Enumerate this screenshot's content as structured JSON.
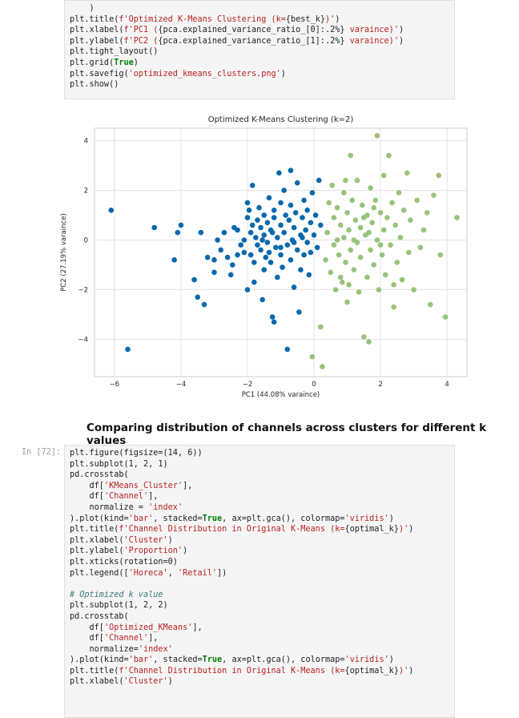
{
  "cell_top": {
    "lines": [
      [
        {
          "t": "    )",
          "c": ""
        }
      ],
      [
        {
          "t": "plt.title(",
          "c": ""
        },
        {
          "t": "f'Optimized K-Means Clustering (k=",
          "c": "str"
        },
        {
          "t": "{best_k}",
          "c": "fexpr"
        },
        {
          "t": ")'",
          "c": "str"
        },
        {
          "t": ")",
          "c": ""
        }
      ],
      [
        {
          "t": "plt.xlabel(",
          "c": ""
        },
        {
          "t": "f'PC1 (",
          "c": "str"
        },
        {
          "t": "{pca.explained_variance_ratio_[0]:.2%}",
          "c": "fexpr"
        },
        {
          "t": " varaince)'",
          "c": "str"
        },
        {
          "t": ")",
          "c": ""
        }
      ],
      [
        {
          "t": "plt.ylabel(",
          "c": ""
        },
        {
          "t": "f'PC2 (",
          "c": "str"
        },
        {
          "t": "{pca.explained_variance_ratio_[1]:.2%}",
          "c": "fexpr"
        },
        {
          "t": " varaince)'",
          "c": "str"
        },
        {
          "t": ")",
          "c": ""
        }
      ],
      [
        {
          "t": "plt.tight_layout()",
          "c": ""
        }
      ],
      [
        {
          "t": "plt.grid(",
          "c": ""
        },
        {
          "t": "True",
          "c": "kw"
        },
        {
          "t": ")",
          "c": ""
        }
      ],
      [
        {
          "t": "plt.savefig(",
          "c": ""
        },
        {
          "t": "'optimized_kmeans_clusters.png'",
          "c": "str"
        },
        {
          "t": ")",
          "c": ""
        }
      ],
      [
        {
          "t": "plt.show()",
          "c": ""
        }
      ]
    ]
  },
  "heading": "Comparing distribution of channels across clusters for different k values",
  "cell_bottom": {
    "prompt": "In [72]:",
    "lines": [
      [
        {
          "t": "plt.figure(figsize=(14, 6))",
          "c": ""
        }
      ],
      [
        {
          "t": "plt.subplot(1, 2, 1)",
          "c": ""
        }
      ],
      [
        {
          "t": "pd.crosstab(",
          "c": ""
        }
      ],
      [
        {
          "t": "    df[",
          "c": ""
        },
        {
          "t": "'KMeans_Cluster'",
          "c": "str"
        },
        {
          "t": "],",
          "c": ""
        }
      ],
      [
        {
          "t": "    df[",
          "c": ""
        },
        {
          "t": "'Channel'",
          "c": "str"
        },
        {
          "t": "],",
          "c": ""
        }
      ],
      [
        {
          "t": "    normalize = ",
          "c": ""
        },
        {
          "t": "'index'",
          "c": "str"
        }
      ],
      [
        {
          "t": ").plot(kind=",
          "c": ""
        },
        {
          "t": "'bar'",
          "c": "str"
        },
        {
          "t": ", stacked=",
          "c": ""
        },
        {
          "t": "True",
          "c": "kw"
        },
        {
          "t": ", ax=plt.gca(), colormap=",
          "c": ""
        },
        {
          "t": "'viridis'",
          "c": "str"
        },
        {
          "t": ")",
          "c": ""
        }
      ],
      [
        {
          "t": "plt.title(",
          "c": ""
        },
        {
          "t": "f'Channel Distribution in Original K-Means (k=",
          "c": "str"
        },
        {
          "t": "{optimal_k}",
          "c": "fexpr"
        },
        {
          "t": ")'",
          "c": "str"
        },
        {
          "t": ")",
          "c": ""
        }
      ],
      [
        {
          "t": "plt.xlabel(",
          "c": ""
        },
        {
          "t": "'Cluster'",
          "c": "str"
        },
        {
          "t": ")",
          "c": ""
        }
      ],
      [
        {
          "t": "plt.ylabel(",
          "c": ""
        },
        {
          "t": "'Proportion'",
          "c": "str"
        },
        {
          "t": ")",
          "c": ""
        }
      ],
      [
        {
          "t": "plt.xticks(rotation=0)",
          "c": ""
        }
      ],
      [
        {
          "t": "plt.legend([",
          "c": ""
        },
        {
          "t": "'Horeca'",
          "c": "str"
        },
        {
          "t": ", ",
          "c": ""
        },
        {
          "t": "'Retail'",
          "c": "str"
        },
        {
          "t": "])",
          "c": ""
        }
      ],
      [
        {
          "t": "",
          "c": ""
        }
      ],
      [
        {
          "t": "# Optimized k value",
          "c": "cm"
        }
      ],
      [
        {
          "t": "plt.subplot(1, 2, 2)",
          "c": ""
        }
      ],
      [
        {
          "t": "pd.crosstab(",
          "c": ""
        }
      ],
      [
        {
          "t": "    df[",
          "c": ""
        },
        {
          "t": "'Optimized_KMeans'",
          "c": "str"
        },
        {
          "t": "],",
          "c": ""
        }
      ],
      [
        {
          "t": "    df[",
          "c": ""
        },
        {
          "t": "'Channel'",
          "c": "str"
        },
        {
          "t": "],",
          "c": ""
        }
      ],
      [
        {
          "t": "    normalize=",
          "c": ""
        },
        {
          "t": "'index'",
          "c": "str"
        }
      ],
      [
        {
          "t": ").plot(kind=",
          "c": ""
        },
        {
          "t": "'bar'",
          "c": "str"
        },
        {
          "t": ", stacked=",
          "c": ""
        },
        {
          "t": "True",
          "c": "kw"
        },
        {
          "t": ", ax=plt.gca(), colormap=",
          "c": ""
        },
        {
          "t": "'viridis'",
          "c": "str"
        },
        {
          "t": ")",
          "c": ""
        }
      ],
      [
        {
          "t": "plt.title(",
          "c": ""
        },
        {
          "t": "f'Channel Distribution in Original K-Means (k=",
          "c": "str"
        },
        {
          "t": "{optimal_k}",
          "c": "fexpr"
        },
        {
          "t": ")'",
          "c": "str"
        },
        {
          "t": ")",
          "c": ""
        }
      ],
      [
        {
          "t": "plt.xlabel(",
          "c": ""
        },
        {
          "t": "'Cluster'",
          "c": "str"
        },
        {
          "t": ")",
          "c": ""
        }
      ]
    ]
  },
  "chart_data": {
    "type": "scatter",
    "title": "Optimized K-Means Clustering (k=2)",
    "xlabel": "PC1 (44.08% varaince)",
    "ylabel": "PC2 (27.19% varaince)",
    "xlim": [
      -6.6,
      4.6
    ],
    "ylim": [
      -5.5,
      4.5
    ],
    "xticks": [
      -6,
      -4,
      -2,
      0,
      2,
      4
    ],
    "yticks": [
      -4,
      -2,
      0,
      2,
      4
    ],
    "grid": true,
    "series": [
      {
        "color": "#0868ac",
        "points": [
          [
            -6.1,
            1.2
          ],
          [
            -5.6,
            -4.4
          ],
          [
            -4.8,
            0.5
          ],
          [
            -4.2,
            -0.8
          ],
          [
            -4.1,
            0.3
          ],
          [
            -4.0,
            0.6
          ],
          [
            -3.6,
            -1.6
          ],
          [
            -3.5,
            -2.3
          ],
          [
            -3.3,
            -2.6
          ],
          [
            -3.4,
            0.3
          ],
          [
            -3.2,
            -0.7
          ],
          [
            -3.0,
            -0.8
          ],
          [
            -3.0,
            -1.3
          ],
          [
            -2.9,
            0.0
          ],
          [
            -2.8,
            -0.4
          ],
          [
            -2.7,
            0.3
          ],
          [
            -2.6,
            -0.7
          ],
          [
            -2.5,
            -1.4
          ],
          [
            -2.4,
            0.5
          ],
          [
            -2.3,
            -0.6
          ],
          [
            -2.3,
            0.4
          ],
          [
            -2.2,
            -0.2
          ],
          [
            -2.1,
            -0.5
          ],
          [
            -2.1,
            0.0
          ],
          [
            -2.0,
            0.9
          ],
          [
            -2.0,
            -2.0
          ],
          [
            -2.0,
            1.5
          ],
          [
            -1.95,
            1.2
          ],
          [
            -1.9,
            0.3
          ],
          [
            -1.9,
            -0.6
          ],
          [
            -1.85,
            0.6
          ],
          [
            -1.8,
            -0.9
          ],
          [
            -1.8,
            -1.7
          ],
          [
            -1.75,
            0.1
          ],
          [
            -1.7,
            -0.2
          ],
          [
            -1.7,
            0.8
          ],
          [
            -1.65,
            1.3
          ],
          [
            -1.6,
            0.5
          ],
          [
            -1.6,
            -0.4
          ],
          [
            -1.55,
            -2.4
          ],
          [
            -1.5,
            1.0
          ],
          [
            -1.5,
            0.2
          ],
          [
            -1.5,
            -1.2
          ],
          [
            -1.45,
            -0.7
          ],
          [
            -1.4,
            0.7
          ],
          [
            -1.4,
            -0.1
          ],
          [
            -1.35,
            1.7
          ],
          [
            -1.3,
            -0.9
          ],
          [
            -1.3,
            0.4
          ],
          [
            -1.25,
            -3.1
          ],
          [
            -1.2,
            -3.3
          ],
          [
            -1.2,
            0.9
          ],
          [
            -1.2,
            1.2
          ],
          [
            -1.15,
            -0.3
          ],
          [
            -1.1,
            0.1
          ],
          [
            -1.1,
            -1.5
          ],
          [
            -1.05,
            2.7
          ],
          [
            -1.0,
            0.6
          ],
          [
            -1.0,
            1.5
          ],
          [
            -1.0,
            -0.6
          ],
          [
            -0.95,
            -1.1
          ],
          [
            -0.9,
            0.3
          ],
          [
            -0.9,
            2.0
          ],
          [
            -0.85,
            1.0
          ],
          [
            -0.8,
            -0.2
          ],
          [
            -0.8,
            -4.4
          ],
          [
            -0.75,
            0.8
          ],
          [
            -0.7,
            -0.8
          ],
          [
            -0.7,
            1.4
          ],
          [
            -0.65,
            0.0
          ],
          [
            -0.6,
            -1.9
          ],
          [
            -0.6,
            0.5
          ],
          [
            -0.55,
            1.1
          ],
          [
            -0.5,
            -0.4
          ],
          [
            -0.5,
            2.3
          ],
          [
            -0.45,
            -2.9
          ],
          [
            -0.4,
            0.2
          ],
          [
            -0.4,
            -1.2
          ],
          [
            -0.35,
            0.9
          ],
          [
            -0.3,
            -0.6
          ],
          [
            -0.3,
            1.6
          ],
          [
            -0.25,
            0.4
          ],
          [
            -0.2,
            -0.1
          ],
          [
            -0.2,
            1.2
          ],
          [
            -0.15,
            -1.4
          ],
          [
            -0.1,
            0.7
          ],
          [
            -0.1,
            -0.5
          ],
          [
            -0.05,
            1.9
          ],
          [
            0.0,
            0.2
          ],
          [
            0.05,
            1.0
          ],
          [
            0.1,
            -0.3
          ],
          [
            0.15,
            2.4
          ],
          [
            0.2,
            0.6
          ],
          [
            -1.55,
            0.0
          ],
          [
            -1.35,
            -0.5
          ],
          [
            -2.45,
            -1.0
          ],
          [
            -1.85,
            2.2
          ],
          [
            -0.7,
            2.8
          ],
          [
            -1.0,
            -0.3
          ],
          [
            -0.6,
            -0.1
          ],
          [
            -1.25,
            0.3
          ],
          [
            -0.35,
            0.1
          ]
        ]
      },
      {
        "color": "#98c37a",
        "points": [
          [
            -0.05,
            -4.7
          ],
          [
            0.25,
            -5.1
          ],
          [
            0.2,
            -3.5
          ],
          [
            0.35,
            -0.8
          ],
          [
            0.4,
            0.3
          ],
          [
            0.45,
            1.5
          ],
          [
            0.5,
            -1.3
          ],
          [
            0.55,
            2.2
          ],
          [
            0.6,
            0.9
          ],
          [
            0.6,
            -0.2
          ],
          [
            0.65,
            -2.0
          ],
          [
            0.7,
            1.3
          ],
          [
            0.75,
            -0.6
          ],
          [
            0.8,
            0.6
          ],
          [
            0.85,
            -1.7
          ],
          [
            0.9,
            1.9
          ],
          [
            0.9,
            0.1
          ],
          [
            0.95,
            -0.9
          ],
          [
            1.0,
            1.1
          ],
          [
            1.0,
            -2.5
          ],
          [
            1.05,
            0.4
          ],
          [
            1.1,
            -0.4
          ],
          [
            1.1,
            3.4
          ],
          [
            1.15,
            1.6
          ],
          [
            1.2,
            -1.2
          ],
          [
            1.25,
            0.8
          ],
          [
            1.3,
            -0.1
          ],
          [
            1.3,
            2.4
          ],
          [
            1.35,
            -2.1
          ],
          [
            1.4,
            0.5
          ],
          [
            1.4,
            -0.7
          ],
          [
            1.45,
            1.4
          ],
          [
            1.5,
            -3.9
          ],
          [
            1.55,
            0.2
          ],
          [
            1.6,
            -1.5
          ],
          [
            1.6,
            1.0
          ],
          [
            1.65,
            -4.1
          ],
          [
            1.7,
            2.1
          ],
          [
            1.7,
            -0.4
          ],
          [
            1.75,
            0.7
          ],
          [
            1.8,
            -1.0
          ],
          [
            1.85,
            1.6
          ],
          [
            1.9,
            4.2
          ],
          [
            1.9,
            0.0
          ],
          [
            1.95,
            -2.0
          ],
          [
            2.0,
            1.1
          ],
          [
            2.05,
            -0.6
          ],
          [
            2.1,
            2.6
          ],
          [
            2.1,
            0.4
          ],
          [
            2.15,
            -1.4
          ],
          [
            2.2,
            0.9
          ],
          [
            2.25,
            3.4
          ],
          [
            2.3,
            -0.2
          ],
          [
            2.35,
            1.5
          ],
          [
            2.4,
            -2.7
          ],
          [
            2.45,
            0.6
          ],
          [
            2.5,
            -0.9
          ],
          [
            2.55,
            1.9
          ],
          [
            2.6,
            0.1
          ],
          [
            2.65,
            -1.6
          ],
          [
            2.7,
            1.2
          ],
          [
            2.8,
            2.7
          ],
          [
            2.85,
            -0.5
          ],
          [
            2.9,
            0.8
          ],
          [
            3.0,
            -2.0
          ],
          [
            3.1,
            1.6
          ],
          [
            3.2,
            -0.3
          ],
          [
            3.3,
            0.4
          ],
          [
            3.5,
            -2.6
          ],
          [
            3.6,
            1.8
          ],
          [
            3.8,
            -0.6
          ],
          [
            3.95,
            -3.1
          ],
          [
            4.3,
            0.9
          ],
          [
            3.75,
            2.6
          ],
          [
            3.4,
            1.1
          ],
          [
            0.8,
            -1.5
          ],
          [
            1.2,
            0.0
          ],
          [
            1.5,
            0.9
          ],
          [
            0.95,
            2.4
          ],
          [
            1.8,
            1.3
          ],
          [
            2.4,
            -1.8
          ],
          [
            1.05,
            -1.8
          ],
          [
            0.7,
            0.0
          ],
          [
            1.65,
            0.3
          ],
          [
            2.0,
            -0.2
          ]
        ]
      }
    ]
  }
}
